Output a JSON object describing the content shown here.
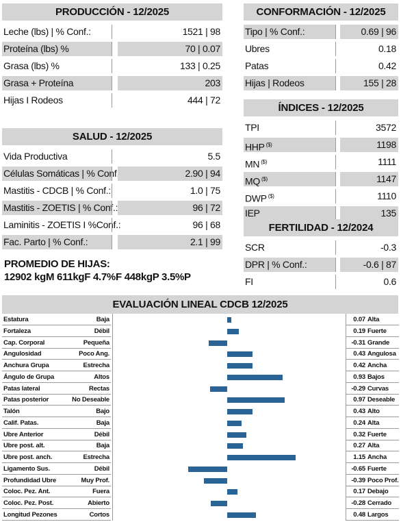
{
  "produccion": {
    "title": "PRODUCCIÓN - 12/2025",
    "rows": [
      {
        "label": "Leche (lbs) | % Conf.:",
        "value": "1521 | 98"
      },
      {
        "label": "Proteína (lbs) %",
        "value": "70 | 0.07"
      },
      {
        "label": "Grasa (lbs) %",
        "value": "133 | 0.25"
      },
      {
        "label": "Grasa + Proteína",
        "value": "203"
      },
      {
        "label": "Hijas I Rodeos",
        "value": "444 | 72"
      }
    ]
  },
  "salud": {
    "title": "SALUD - 12/2025",
    "rows": [
      {
        "label": "Vida Productiva",
        "value": "5.5"
      },
      {
        "label": "Células Somáticas | % Conf.:",
        "value": "2.90 | 94"
      },
      {
        "label": "Mastitis - CDCB | % Conf.:",
        "value": "1.0 | 75"
      },
      {
        "label": "Mastitis - ZOETIS | % Conf.:",
        "value": "96 | 72"
      },
      {
        "label": "Laminitis - ZOETIS I %Conf.:",
        "value": "96 | 68"
      },
      {
        "label": "Fac. Parto | % Conf.:",
        "value": "2.1 | 99"
      }
    ]
  },
  "promedio": {
    "title": "PROMEDIO DE HIJAS:",
    "text": "12902 kgM 611kgF 4.7%F 448kgP 3.5%P"
  },
  "conformacion": {
    "title": "CONFORMACIÓN - 12/2025",
    "rows": [
      {
        "label": "Tipo | % Conf.:",
        "value": "0.69 | 96"
      },
      {
        "label": "Ubres",
        "value": "0.18"
      },
      {
        "label": "Patas",
        "value": "0.42"
      },
      {
        "label": "Hijas | Rodeos",
        "value": "155 | 28"
      }
    ]
  },
  "indices": {
    "title": "ÍNDICES - 12/2025",
    "rows": [
      {
        "label": "TPI",
        "sup": "",
        "value": "3572"
      },
      {
        "label": "HHP",
        "sup": "($)",
        "value": "1198"
      },
      {
        "label": "MN",
        "sup": "($)",
        "value": "1111"
      },
      {
        "label": "MQ",
        "sup": "($)",
        "value": "1147"
      },
      {
        "label": "DWP",
        "sup": "($)",
        "value": "1110"
      },
      {
        "label": "IEP",
        "sup": "",
        "value": "135"
      }
    ]
  },
  "fertilidad": {
    "title": "FERTILIDAD - 12/2024",
    "rows": [
      {
        "label": "SCR",
        "value": "-0.3"
      },
      {
        "label": "DPR | % Conf.:",
        "value": "-0.6 | 87"
      },
      {
        "label": "FI",
        "value": "0.6"
      }
    ]
  },
  "lineal": {
    "title": "EVALUACIÓN LINEAL CDCB 12/2025",
    "bar_color": "#2a6396",
    "traits": [
      {
        "trait": "Estatura",
        "low": "Baja",
        "value": 0.07,
        "value_text": "0.07",
        "high": "Alta"
      },
      {
        "trait": "Fortaleza",
        "low": "Débil",
        "value": 0.19,
        "value_text": "0.19",
        "high": "Fuerte"
      },
      {
        "trait": "Cap. Corporal",
        "low": "Pequeña",
        "value": -0.31,
        "value_text": "-0.31",
        "high": "Grande"
      },
      {
        "trait": "Angulosidad",
        "low": "Poco Ang.",
        "value": 0.43,
        "value_text": "0.43",
        "high": "Angulosa"
      },
      {
        "trait": "Anchura Grupa",
        "low": "Estrecha",
        "value": 0.42,
        "value_text": "0.42",
        "high": "Ancha"
      },
      {
        "trait": "Ángulo de Grupa",
        "low": "Altos",
        "value": 0.93,
        "value_text": "0.93",
        "high": "Bajos"
      },
      {
        "trait": "Patas lateral",
        "low": "Rectas",
        "value": -0.29,
        "value_text": "-0.29",
        "high": "Curvas"
      },
      {
        "trait": "Patas posterior",
        "low": "No Deseable",
        "value": 0.97,
        "value_text": "0.97",
        "high": "Deseable"
      },
      {
        "trait": "Talón",
        "low": "Bajo",
        "value": 0.43,
        "value_text": "0.43",
        "high": "Alto"
      },
      {
        "trait": "Calif. Patas.",
        "low": "Baja",
        "value": 0.24,
        "value_text": "0.24",
        "high": "Alta"
      },
      {
        "trait": "Ubre Anterior",
        "low": "Débil",
        "value": 0.32,
        "value_text": "0.32",
        "high": "Fuerte"
      },
      {
        "trait": "Ubre post. alt.",
        "low": "Baja",
        "value": 0.27,
        "value_text": "0.27",
        "high": "Alta"
      },
      {
        "trait": "Ubre post. anch.",
        "low": "Estrecha",
        "value": 1.15,
        "value_text": "1.15",
        "high": "Ancha"
      },
      {
        "trait": "Ligamento Sus.",
        "low": "Débil",
        "value": -0.65,
        "value_text": "-0.65",
        "high": "Fuerte"
      },
      {
        "trait": "Profundidad Ubre",
        "low": "Muy Prof.",
        "value": -0.39,
        "value_text": "-0.39",
        "high": "Poco Prof."
      },
      {
        "trait": "Coloc. Pez. Ant.",
        "low": "Fuera",
        "value": 0.17,
        "value_text": "0.17",
        "high": "Debajo"
      },
      {
        "trait": "Coloc. Pez. Post.",
        "low": "Abierto",
        "value": -0.28,
        "value_text": "-0.28",
        "high": "Cerrado"
      },
      {
        "trait": "Longitud Pezones",
        "low": "Cortos",
        "value": 0.48,
        "value_text": "0.48",
        "high": "Largos"
      }
    ]
  }
}
